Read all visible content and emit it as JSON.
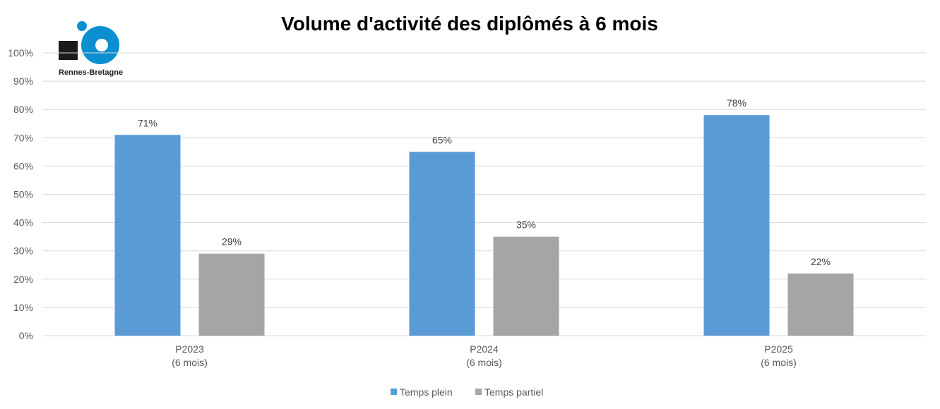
{
  "logo": {
    "text": "Rennes-Bretagne",
    "colors": {
      "square": "#1a1a1a",
      "ring": "#0a8fd1"
    }
  },
  "chart_data": {
    "type": "bar",
    "title": "Volume d'activité des diplômés à 6 mois",
    "categories": [
      [
        "P2023",
        "(6 mois)"
      ],
      [
        "P2024",
        "(6 mois)"
      ],
      [
        "P2025",
        "(6 mois)"
      ]
    ],
    "series": [
      {
        "name": "Temps plein",
        "values": [
          71,
          65,
          78
        ],
        "labels": [
          "71%",
          "65%",
          "78%"
        ],
        "color": "#5b9bd5"
      },
      {
        "name": "Temps partiel",
        "values": [
          29,
          35,
          22
        ],
        "labels": [
          "29%",
          "35%",
          "22%"
        ],
        "color": "#a5a5a5"
      }
    ],
    "ylim": [
      0,
      100
    ],
    "yticks": [
      "0%",
      "10%",
      "20%",
      "30%",
      "40%",
      "50%",
      "60%",
      "70%",
      "80%",
      "90%",
      "100%"
    ],
    "grid": true,
    "legend": "bottom"
  }
}
